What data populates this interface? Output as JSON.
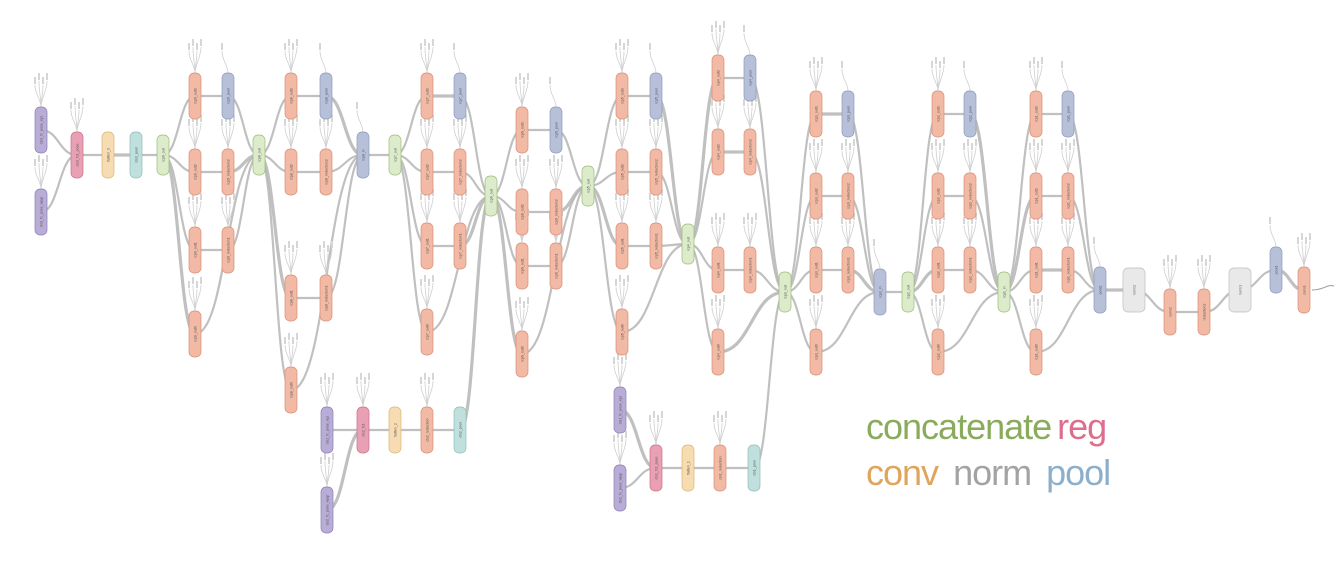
{
  "colors": {
    "concatenate": "#dcebc9",
    "reg": "#e9a0b4",
    "conv": "#f2b9a4",
    "norm": "#e9e9e9",
    "pool": "#b6c1d9",
    "flatten": "#f6dcb0",
    "avgpool": "#bfe0dc",
    "input": "#b9acd6",
    "edge": "#b5b5b5",
    "legend_concatenate": "#8aab5c",
    "legend_reg": "#dc6f8d",
    "legend_conv": "#e0a55c",
    "legend_norm": "#a3a3a3",
    "legend_pool": "#8cafcb"
  },
  "legend": {
    "concatenate": "concatenate",
    "reg": "reg",
    "conv": "conv",
    "norm": "norm",
    "pool": "pool"
  },
  "nodes": [
    {
      "id": "conv1",
      "label": "conv1",
      "type": "conv"
    },
    {
      "id": "pool1",
      "label": "pool1",
      "type": "pool"
    },
    {
      "id": "norm1",
      "label": "norm1",
      "type": "norm"
    },
    {
      "id": "reduction2",
      "label": "reduction2",
      "type": "conv"
    },
    {
      "id": "conv2",
      "label": "conv2",
      "type": "conv"
    },
    {
      "id": "norm2",
      "label": "norm2",
      "type": "norm"
    },
    {
      "id": "pool2",
      "label": "pool2",
      "type": "pool"
    },
    {
      "id": "icp1_in",
      "label": "icp1_in",
      "type": "concatenate"
    },
    {
      "id": "icp1_out0",
      "label": "icp1_out0",
      "type": "conv"
    },
    {
      "id": "icp1_out1",
      "label": "icp1_out1",
      "type": "conv"
    },
    {
      "id": "icp1_out2",
      "label": "icp1_out2",
      "type": "conv"
    },
    {
      "id": "icp1_out3",
      "label": "icp1_out3",
      "type": "conv"
    },
    {
      "id": "icp1_reduction1",
      "label": "icp1_reduction1",
      "type": "conv"
    },
    {
      "id": "icp1_reduction2",
      "label": "icp1_reduction2",
      "type": "conv"
    },
    {
      "id": "icp1_pool",
      "label": "icp1_pool",
      "type": "pool"
    },
    {
      "id": "icp2_out",
      "label": "icp2_out",
      "type": "concatenate"
    },
    {
      "id": "icp2_out0",
      "label": "icp2_out0",
      "type": "conv"
    },
    {
      "id": "icp2_out1",
      "label": "icp2_out1",
      "type": "conv"
    },
    {
      "id": "icp2_out2",
      "label": "icp2_out2",
      "type": "conv"
    },
    {
      "id": "icp2_out3",
      "label": "icp2_out3",
      "type": "conv"
    },
    {
      "id": "icp2_reduction1",
      "label": "icp2_reduction1",
      "type": "conv"
    },
    {
      "id": "icp2_reduction2",
      "label": "icp2_reduction2",
      "type": "conv"
    },
    {
      "id": "icp2_pool",
      "label": "icp2_pool",
      "type": "pool"
    },
    {
      "id": "icp3_in",
      "label": "icp3_in",
      "type": "pool"
    },
    {
      "id": "icp3_out",
      "label": "icp3_out",
      "type": "concatenate"
    },
    {
      "id": "icp3_out0",
      "label": "icp3_out0",
      "type": "conv"
    },
    {
      "id": "icp3_out1",
      "label": "icp3_out1",
      "type": "conv"
    },
    {
      "id": "icp3_out2",
      "label": "icp3_out2",
      "type": "conv"
    },
    {
      "id": "icp3_out3",
      "label": "icp3_out3",
      "type": "conv"
    },
    {
      "id": "icp3_reduction1",
      "label": "icp3_reduction1",
      "type": "conv"
    },
    {
      "id": "icp3_reduction2",
      "label": "icp3_reduction2",
      "type": "conv"
    },
    {
      "id": "icp3_pool",
      "label": "icp3_pool",
      "type": "pool"
    },
    {
      "id": "icp4_out",
      "label": "icp4_out",
      "type": "concatenate"
    },
    {
      "id": "icp4_out0",
      "label": "icp4_out0",
      "type": "conv"
    },
    {
      "id": "icp4_out1",
      "label": "icp4_out1",
      "type": "conv"
    },
    {
      "id": "icp4_out2",
      "label": "icp4_out2",
      "type": "conv"
    },
    {
      "id": "icp4_out3",
      "label": "icp4_out3",
      "type": "conv"
    },
    {
      "id": "icp4_reduction1",
      "label": "icp4_reduction1",
      "type": "conv"
    },
    {
      "id": "icp4_reduction2",
      "label": "icp4_reduction2",
      "type": "conv"
    },
    {
      "id": "icp4_pool",
      "label": "icp4_pool",
      "type": "pool"
    },
    {
      "id": "icp5_out",
      "label": "icp5_out",
      "type": "concatenate"
    },
    {
      "id": "icp5_out0",
      "label": "icp5_out0",
      "type": "conv"
    },
    {
      "id": "icp5_out1",
      "label": "icp5_out1",
      "type": "conv"
    },
    {
      "id": "icp5_out2",
      "label": "icp5_out2",
      "type": "conv"
    },
    {
      "id": "icp5_out3",
      "label": "icp5_out3",
      "type": "conv"
    },
    {
      "id": "icp5_reduction1",
      "label": "icp5_reduction1",
      "type": "conv"
    },
    {
      "id": "icp5_reduction2",
      "label": "icp5_reduction2",
      "type": "conv"
    },
    {
      "id": "icp5_pool",
      "label": "icp5_pool",
      "type": "pool"
    },
    {
      "id": "icp6_out",
      "label": "icp6_out",
      "type": "concatenate"
    },
    {
      "id": "icp6_out0",
      "label": "icp6_out0",
      "type": "conv"
    },
    {
      "id": "icp6_out1",
      "label": "icp6_out1",
      "type": "conv"
    },
    {
      "id": "icp6_out2",
      "label": "icp6_out2",
      "type": "conv"
    },
    {
      "id": "icp6_out3",
      "label": "icp6_out3",
      "type": "conv"
    },
    {
      "id": "icp6_reduction1",
      "label": "icp6_reduction1",
      "type": "conv"
    },
    {
      "id": "icp6_reduction2",
      "label": "icp6_reduction2",
      "type": "conv"
    },
    {
      "id": "icp6_pool",
      "label": "icp6_pool",
      "type": "pool"
    },
    {
      "id": "icp7_out",
      "label": "icp7_out",
      "type": "concatenate"
    },
    {
      "id": "icp7_out0",
      "label": "icp7_out0",
      "type": "conv"
    },
    {
      "id": "icp7_out1",
      "label": "icp7_out1",
      "type": "conv"
    },
    {
      "id": "icp7_out2",
      "label": "icp7_out2",
      "type": "conv"
    },
    {
      "id": "icp7_out3",
      "label": "icp7_out3",
      "type": "conv"
    },
    {
      "id": "icp7_reduction1",
      "label": "icp7_reduction1",
      "type": "conv"
    },
    {
      "id": "icp7_reduction2",
      "label": "icp7_reduction2",
      "type": "conv"
    },
    {
      "id": "icp7_pool",
      "label": "icp7_pool",
      "type": "pool"
    },
    {
      "id": "icp8_in",
      "label": "icp8_in",
      "type": "pool"
    },
    {
      "id": "icp8_out",
      "label": "icp8_out",
      "type": "concatenate"
    },
    {
      "id": "icp8_out0",
      "label": "icp8_out0",
      "type": "conv"
    },
    {
      "id": "icp8_out1",
      "label": "icp8_out1",
      "type": "conv"
    },
    {
      "id": "icp8_out2",
      "label": "icp8_out2",
      "type": "conv"
    },
    {
      "id": "icp8_out3",
      "label": "icp8_out3",
      "type": "conv"
    },
    {
      "id": "icp8_reduction1",
      "label": "icp8_reduction1",
      "type": "conv"
    },
    {
      "id": "icp8_reduction2",
      "label": "icp8_reduction2",
      "type": "conv"
    },
    {
      "id": "icp8_pool",
      "label": "icp8_pool",
      "type": "pool"
    },
    {
      "id": "icp9_out",
      "label": "icp9_out",
      "type": "concatenate"
    },
    {
      "id": "icp9_out0",
      "label": "icp9_out0",
      "type": "conv"
    },
    {
      "id": "icp9_out1",
      "label": "icp9_out1",
      "type": "conv"
    },
    {
      "id": "icp9_out2",
      "label": "icp9_out2",
      "type": "conv"
    },
    {
      "id": "icp9_out3",
      "label": "icp9_out3",
      "type": "conv"
    },
    {
      "id": "icp9_reduction1",
      "label": "icp9_reduction1",
      "type": "conv"
    },
    {
      "id": "icp9_reduction2",
      "label": "icp9_reduction2",
      "type": "conv"
    },
    {
      "id": "icp9_pool",
      "label": "icp9_pool",
      "type": "pool"
    },
    {
      "id": "cls1_pool",
      "label": "cls1_pool",
      "type": "avgpool"
    },
    {
      "id": "cls1_reduction",
      "label": "cls1_reduction",
      "type": "conv"
    },
    {
      "id": "flatten_1",
      "label": "flatten_1",
      "type": "flatten"
    },
    {
      "id": "cls1_fc1_pose",
      "label": "cls1_fc1_pose",
      "type": "reg"
    },
    {
      "id": "cls1_fc_pose_xyz",
      "label": "cls1_fc_pose_xyz",
      "type": "input"
    },
    {
      "id": "cls1_fc_pose_wpqr",
      "label": "cls1_fc_pose_wpqr",
      "type": "input"
    },
    {
      "id": "cls2_pool",
      "label": "cls2_pool",
      "type": "avgpool"
    },
    {
      "id": "cls2_reduction",
      "label": "cls2_reduction",
      "type": "conv"
    },
    {
      "id": "flatten_2",
      "label": "flatten_2",
      "type": "flatten"
    },
    {
      "id": "cls2_fc1",
      "label": "cls2_fc1",
      "type": "reg"
    },
    {
      "id": "cls2_fc_pose_xyz",
      "label": "cls2_fc_pose_xyz",
      "type": "input"
    },
    {
      "id": "cls2_fc_pose_wpqr",
      "label": "cls2_fc_pose_wpqr",
      "type": "input"
    },
    {
      "id": "cls3_pool",
      "label": "cls3_pool",
      "type": "avgpool"
    },
    {
      "id": "flatten_3",
      "label": "flatten_3",
      "type": "flatten"
    },
    {
      "id": "cls3_fc1_pose",
      "label": "cls3_fc1_pose",
      "type": "reg"
    },
    {
      "id": "cls3_fc_pose_xyz",
      "label": "cls3_fc_pose_xyz",
      "type": "input"
    },
    {
      "id": "cls3_fc_pose_wpqr",
      "label": "cls3_fc_pose_wpqr",
      "type": "input"
    }
  ],
  "edges": [
    [
      "conv1",
      "pool1"
    ],
    [
      "pool1",
      "norm1"
    ],
    [
      "norm1",
      "reduction2"
    ],
    [
      "reduction2",
      "conv2"
    ],
    [
      "conv2",
      "norm2"
    ],
    [
      "norm2",
      "pool2"
    ],
    [
      "pool2",
      "icp1_out0"
    ],
    [
      "pool2",
      "icp1_reduction1"
    ],
    [
      "pool2",
      "icp1_reduction2"
    ],
    [
      "pool2",
      "icp1_pool"
    ],
    [
      "icp1_reduction1",
      "icp1_out1"
    ],
    [
      "icp1_reduction2",
      "icp1_out2"
    ],
    [
      "icp1_pool",
      "icp1_out3"
    ],
    [
      "icp1_out0",
      "icp1_in"
    ],
    [
      "icp1_out1",
      "icp1_in"
    ],
    [
      "icp1_out2",
      "icp1_in"
    ],
    [
      "icp1_out3",
      "icp1_in"
    ],
    [
      "icp1_in",
      "icp2_out0"
    ],
    [
      "icp1_in",
      "icp2_reduction1"
    ],
    [
      "icp1_in",
      "icp2_reduction2"
    ],
    [
      "icp1_in",
      "icp2_pool"
    ],
    [
      "icp2_reduction1",
      "icp2_out1"
    ],
    [
      "icp2_reduction2",
      "icp2_out2"
    ],
    [
      "icp2_pool",
      "icp2_out3"
    ],
    [
      "icp2_out0",
      "icp2_out"
    ],
    [
      "icp2_out1",
      "icp2_out"
    ],
    [
      "icp2_out2",
      "icp2_out"
    ],
    [
      "icp2_out3",
      "icp2_out"
    ],
    [
      "icp2_out",
      "icp3_in"
    ],
    [
      "icp3_in",
      "icp3_out0"
    ],
    [
      "icp3_in",
      "icp3_reduction1"
    ],
    [
      "icp3_in",
      "icp3_reduction2"
    ],
    [
      "icp3_in",
      "icp3_pool"
    ],
    [
      "icp3_reduction1",
      "icp3_out1"
    ],
    [
      "icp3_reduction2",
      "icp3_out2"
    ],
    [
      "icp3_pool",
      "icp3_out3"
    ],
    [
      "icp3_out0",
      "icp3_out"
    ],
    [
      "icp3_out1",
      "icp3_out"
    ],
    [
      "icp3_out2",
      "icp3_out"
    ],
    [
      "icp3_out3",
      "icp3_out"
    ],
    [
      "icp3_out",
      "icp4_out0"
    ],
    [
      "icp3_out",
      "icp4_reduction1"
    ],
    [
      "icp3_out",
      "icp4_reduction2"
    ],
    [
      "icp3_out",
      "icp4_pool"
    ],
    [
      "icp4_reduction1",
      "icp4_out1"
    ],
    [
      "icp4_reduction2",
      "icp4_out2"
    ],
    [
      "icp4_pool",
      "icp4_out3"
    ],
    [
      "icp4_out0",
      "icp4_out"
    ],
    [
      "icp4_out1",
      "icp4_out"
    ],
    [
      "icp4_out2",
      "icp4_out"
    ],
    [
      "icp4_out3",
      "icp4_out"
    ],
    [
      "icp3_out",
      "cls1_pool"
    ],
    [
      "cls1_pool",
      "cls1_reduction"
    ],
    [
      "cls1_reduction",
      "flatten_1"
    ],
    [
      "flatten_1",
      "cls1_fc1_pose"
    ],
    [
      "cls1_fc1_pose",
      "cls1_fc_pose_xyz"
    ],
    [
      "cls1_fc1_pose",
      "cls1_fc_pose_wpqr"
    ],
    [
      "icp4_out",
      "icp5_out0"
    ],
    [
      "icp4_out",
      "icp5_reduction1"
    ],
    [
      "icp4_out",
      "icp5_reduction2"
    ],
    [
      "icp4_out",
      "icp5_pool"
    ],
    [
      "icp5_reduction1",
      "icp5_out1"
    ],
    [
      "icp5_reduction2",
      "icp5_out2"
    ],
    [
      "icp5_pool",
      "icp5_out3"
    ],
    [
      "icp5_out0",
      "icp5_out"
    ],
    [
      "icp5_out1",
      "icp5_out"
    ],
    [
      "icp5_out2",
      "icp5_out"
    ],
    [
      "icp5_out3",
      "icp5_out"
    ],
    [
      "icp5_out",
      "icp6_out0"
    ],
    [
      "icp5_out",
      "icp6_reduction1"
    ],
    [
      "icp5_out",
      "icp6_reduction2"
    ],
    [
      "icp5_out",
      "icp6_pool"
    ],
    [
      "icp6_reduction1",
      "icp6_out1"
    ],
    [
      "icp6_reduction2",
      "icp6_out2"
    ],
    [
      "icp6_pool",
      "icp6_out3"
    ],
    [
      "icp6_out0",
      "icp6_out"
    ],
    [
      "icp6_out1",
      "icp6_out"
    ],
    [
      "icp6_out2",
      "icp6_out"
    ],
    [
      "icp6_out3",
      "icp6_out"
    ],
    [
      "icp6_out",
      "icp7_out0"
    ],
    [
      "icp6_out",
      "icp7_reduction1"
    ],
    [
      "icp6_out",
      "icp7_reduction2"
    ],
    [
      "icp6_out",
      "icp7_pool"
    ],
    [
      "icp7_reduction1",
      "icp7_out1"
    ],
    [
      "icp7_reduction2",
      "icp7_out2"
    ],
    [
      "icp7_pool",
      "icp7_out3"
    ],
    [
      "icp7_out0",
      "icp7_out"
    ],
    [
      "icp7_out1",
      "icp7_out"
    ],
    [
      "icp7_out2",
      "icp7_out"
    ],
    [
      "icp7_out3",
      "icp7_out"
    ],
    [
      "icp6_out",
      "cls2_pool"
    ],
    [
      "cls2_pool",
      "cls2_reduction"
    ],
    [
      "cls2_reduction",
      "flatten_2"
    ],
    [
      "flatten_2",
      "cls2_fc1"
    ],
    [
      "cls2_fc1",
      "cls2_fc_pose_xyz"
    ],
    [
      "cls2_fc1",
      "cls2_fc_pose_wpqr"
    ],
    [
      "icp7_out",
      "icp8_in"
    ],
    [
      "icp8_in",
      "icp8_out0"
    ],
    [
      "icp8_in",
      "icp8_reduction1"
    ],
    [
      "icp8_in",
      "icp8_reduction2"
    ],
    [
      "icp8_in",
      "icp8_pool"
    ],
    [
      "icp8_reduction1",
      "icp8_out1"
    ],
    [
      "icp8_reduction2",
      "icp8_out2"
    ],
    [
      "icp8_pool",
      "icp8_out3"
    ],
    [
      "icp8_out0",
      "icp8_out"
    ],
    [
      "icp8_out1",
      "icp8_out"
    ],
    [
      "icp8_out2",
      "icp8_out"
    ],
    [
      "icp8_out3",
      "icp8_out"
    ],
    [
      "icp8_out",
      "icp9_out0"
    ],
    [
      "icp8_out",
      "icp9_reduction1"
    ],
    [
      "icp8_out",
      "icp9_reduction2"
    ],
    [
      "icp8_out",
      "icp9_pool"
    ],
    [
      "icp9_reduction1",
      "icp9_out1"
    ],
    [
      "icp9_reduction2",
      "icp9_out2"
    ],
    [
      "icp9_pool",
      "icp9_out3"
    ],
    [
      "icp9_out0",
      "icp9_out"
    ],
    [
      "icp9_out1",
      "icp9_out"
    ],
    [
      "icp9_out2",
      "icp9_out"
    ],
    [
      "icp9_out3",
      "icp9_out"
    ],
    [
      "icp9_out",
      "cls3_pool"
    ],
    [
      "cls3_pool",
      "flatten_3"
    ],
    [
      "flatten_3",
      "cls3_fc1_pose"
    ],
    [
      "cls3_fc1_pose",
      "cls3_fc_pose_xyz"
    ],
    [
      "cls3_fc1_pose",
      "cls3_fc_pose_wpqr"
    ]
  ]
}
